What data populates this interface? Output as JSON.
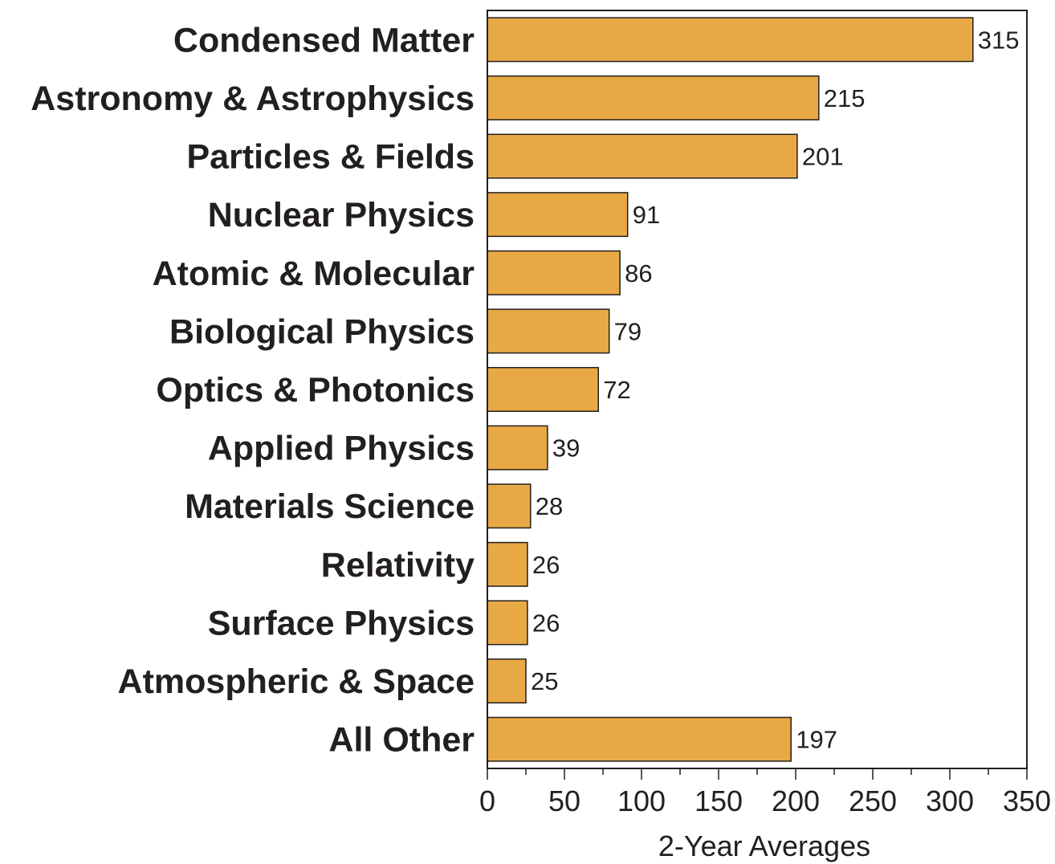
{
  "chart_data": {
    "type": "bar",
    "orientation": "horizontal",
    "categories": [
      "Condensed Matter",
      "Astronomy & Astrophysics",
      "Particles & Fields",
      "Nuclear Physics",
      "Atomic & Molecular",
      "Biological Physics",
      "Optics & Photonics",
      "Applied Physics",
      "Materials Science",
      "Relativity",
      "Surface Physics",
      "Atmospheric & Space",
      "All Other"
    ],
    "values": [
      315,
      215,
      201,
      91,
      86,
      79,
      72,
      39,
      28,
      26,
      26,
      25,
      197
    ],
    "value_labels": [
      "315",
      "215",
      "201",
      "91",
      "86",
      "79",
      "72",
      "39",
      "28",
      "26",
      "26",
      "25",
      "197"
    ],
    "title": "",
    "xlabel": "2-Year Averages",
    "ylabel": "",
    "xlim": [
      0,
      350
    ],
    "x_ticks": [
      0,
      50,
      100,
      150,
      200,
      250,
      300,
      350
    ],
    "x_tick_labels": [
      "0",
      "50",
      "100",
      "150",
      "200",
      "250",
      "300",
      "350"
    ],
    "grid": false,
    "legend": "none",
    "bar_color": "#e8a945",
    "bar_edge_color": "#231f20",
    "axis_color": "#231f20"
  }
}
